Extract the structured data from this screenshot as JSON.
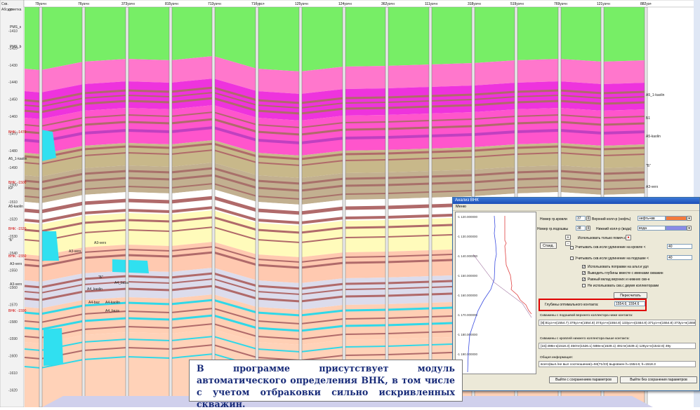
{
  "section": {
    "corner_label": "Скв.",
    "depth_header": "Абс.отметка",
    "wells": [
      "79уз+н",
      "76уз+н",
      "373уз+н",
      "815уз+н",
      "713уз+н",
      "71бурс+",
      "125уз+н",
      "124уз+н",
      "362уз+н",
      "111уз+н",
      "318уз+н",
      "519уз+н",
      "769уз+н",
      "121уз+н",
      "882уз+"
    ],
    "depth_ticks": [
      "-1410",
      "-1420",
      "-1430",
      "-1440",
      "-1450",
      "-1460",
      "-1470",
      "-1480",
      "-1490",
      "-1500",
      "-1510",
      "-1520",
      "-1530",
      "-1540",
      "-1550",
      "-1560",
      "-1570",
      "-1580",
      "-1590",
      "-1600",
      "-1610",
      "-1620"
    ],
    "left_labels": [
      {
        "text": "KP"
      },
      {
        "text": "PMS_s"
      },
      {
        "text": "PMS_b"
      },
      {
        "text": "ВНК: -1470"
      },
      {
        "text": "A5_1-kaolin"
      },
      {
        "text": "ВНК: -1500"
      },
      {
        "text": "KP"
      },
      {
        "text": "A5-kaolin"
      },
      {
        "text": "ВНК: -1520"
      },
      {
        "text": "\"Б\""
      },
      {
        "text": "ВНК: -1550"
      },
      {
        "text": "A3-verx"
      },
      {
        "text": "A3-verx"
      },
      {
        "text": "ВНК: -1590"
      }
    ],
    "mid_labels": [
      "A3-verx",
      "A3-verx",
      "A4_kaolin",
      "A4_baza",
      "A4-baz",
      "A4-kaolin",
      "A4_baza",
      "\"Б\""
    ],
    "right_labels": [
      "A5_1-kaolin",
      "Б1",
      "A5-kaolin",
      "\"Б\"",
      "A3-verx"
    ]
  },
  "dialog": {
    "title": "Анализ ВНК",
    "menu": "Меню",
    "plot_ticks": [
      "-1 120.000000",
      "-1 130.000000",
      "-1 140.000000",
      "-1 150.000000",
      "-1 160.000000",
      "-1 170.000000",
      "-1 180.000000",
      "-1 190.000000"
    ],
    "top_num_label": "Номер гр.кровли",
    "top_num_value": "37",
    "bot_num_label": "Номер гр.подошвы",
    "bot_num_value": "38",
    "upper_collector_label": "Верхний колл-р (нефть)",
    "upper_collector_value": "нефть+вв",
    "lower_collector_label": "Нижний колл-р (вода)",
    "lower_collector_value": "вода",
    "colors": {
      "upper": "#f47a3c",
      "lower": "#8a8ae6"
    },
    "plus_button": "+",
    "minus_button": "-",
    "stand_button": "Станд.",
    "use_only_label": "Использовать только помеч.скв.",
    "chk1_label": "Учитывать скв.если удлинение на кровле <",
    "chk1_value": "40",
    "chk2_label": "Учитывать скв.если удлинение на подошве <",
    "chk2_value": "40",
    "options": [
      {
        "label": "Использовать поправки на альт.и удл",
        "checked": true
      },
      {
        "label": "Выводить глубины вместе с именами скважин",
        "checked": true
      },
      {
        "label": "Равный вклад верхних и нижних скв-н",
        "checked": true
      },
      {
        "label": "Не использовать скв.с двумя коллекторами",
        "checked": false
      }
    ],
    "recalc_button": "Пересчитать",
    "depth_label": "Глубины оптимального контакта:",
    "depth_value": "1554.6; 1554.6",
    "upper_wells_label": "Скважины с подошвой верхнего коллектора ниже контакта:",
    "upper_wells_value": "[8]:81уз+н(1554.7) 375уз+н(1554.8) 374уз+н(1554.8) 133уз+н(1554.8) 371уз+н(1554.8) 373уз+н(1555.4)",
    "lower_wells_label": "Скважины с кровлей нижнего коллектора выше контакта:",
    "lower_wells_value": "[15]:498н-к(1518.3) 450те(1526.1) 588н-к(1539.1) 491те(1539.1) 126уз+н(1542.6) 49у",
    "info_label": "Общая информация:",
    "info_value": "всего(выл./не выл соотношение)=94(71/23) выровнен h=1554.6; h=1518.3",
    "save_exit_button": "Выйти с сохранением параметров",
    "nosave_exit_button": "Выйти без сохранения параметров"
  },
  "callout": {
    "text": "В программе присутствует модуль автоматического определения ВНК, в том числе с учетом отбраковки сильно искривленных скважин."
  }
}
